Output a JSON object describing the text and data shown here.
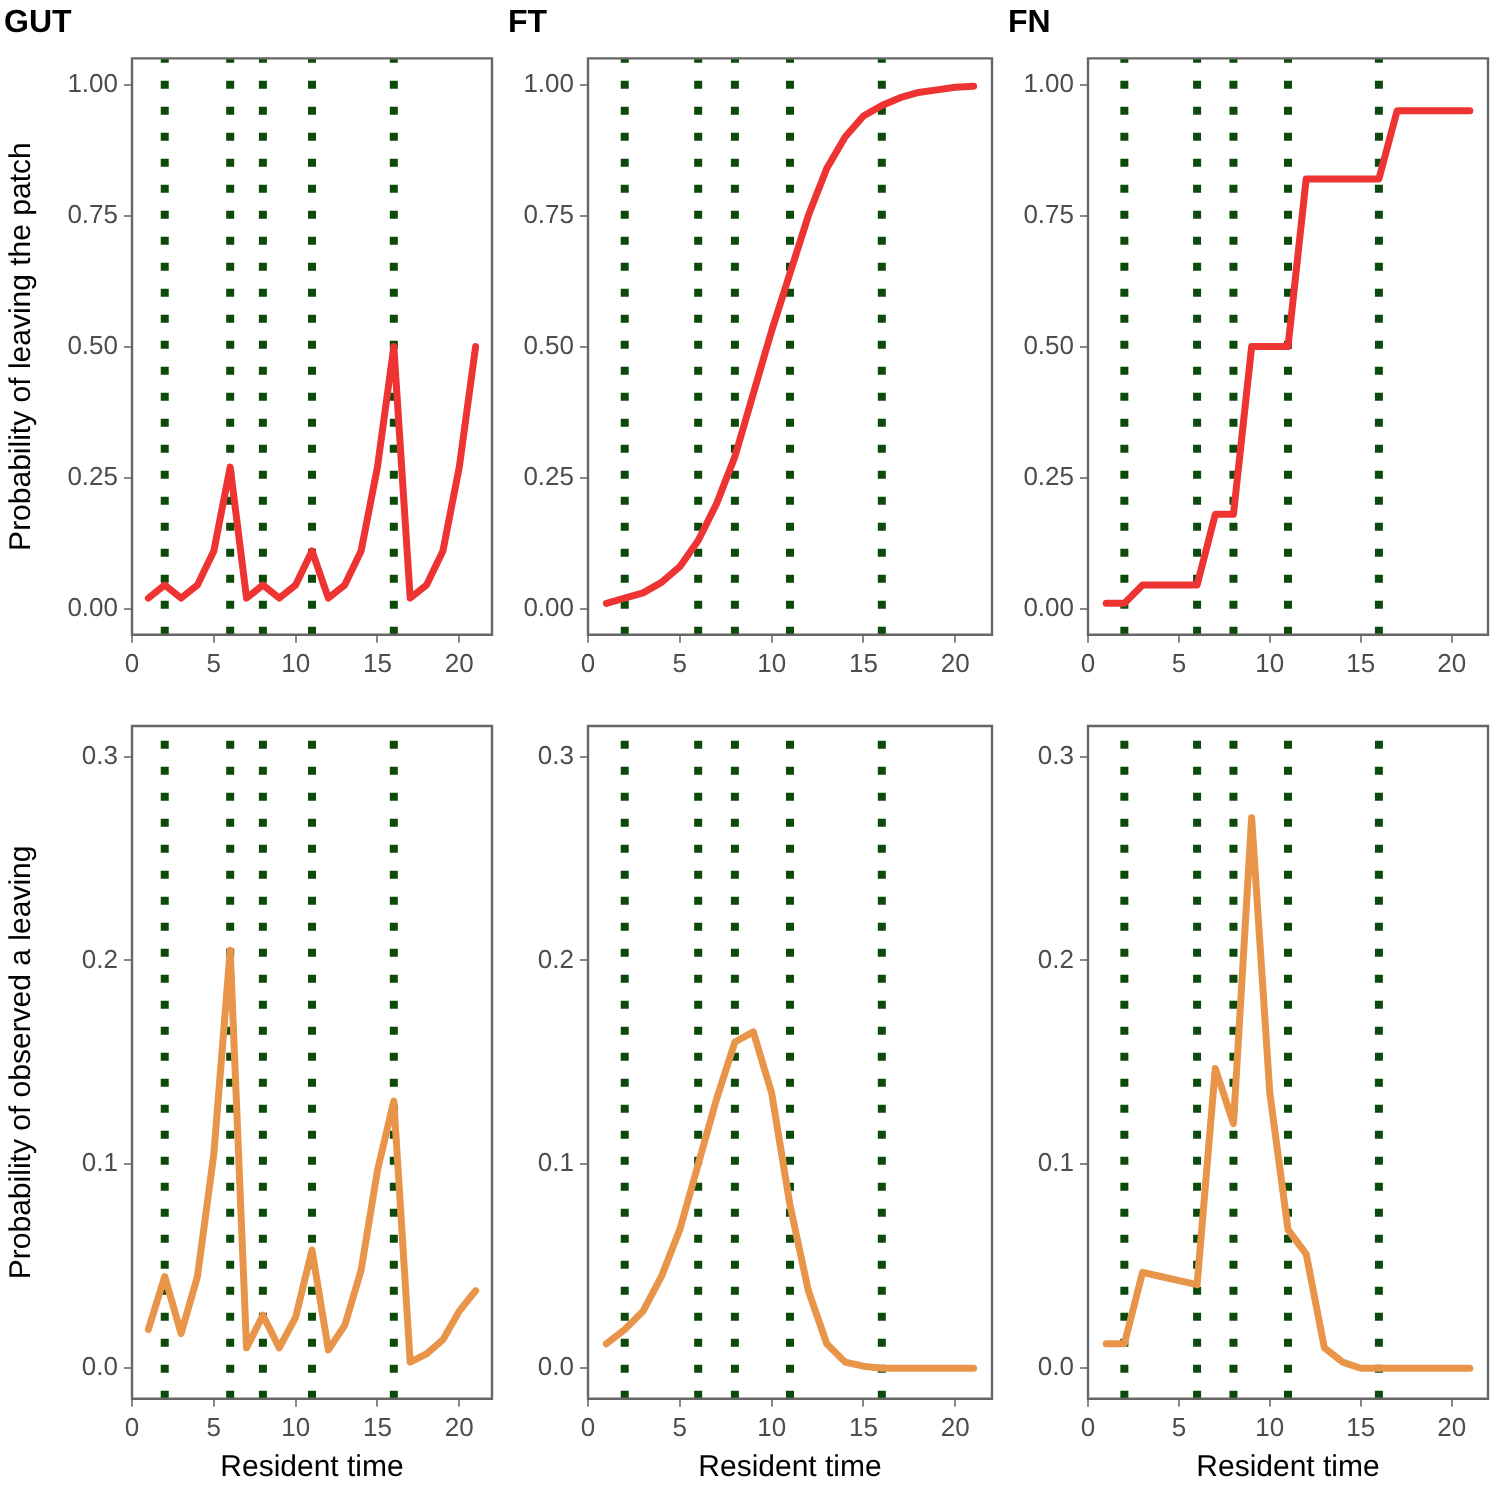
{
  "chart_data": [
    {
      "type": "line",
      "title": "GUT",
      "ylabel": "Probability of leaving the patch",
      "x": [
        1,
        2,
        3,
        4,
        5,
        6,
        7,
        8,
        9,
        10,
        11,
        12,
        13,
        14,
        15,
        16,
        17,
        18,
        19,
        20,
        21
      ],
      "series": [
        {
          "color": "#ee3333",
          "values": [
            0.02,
            0.045,
            0.02,
            0.045,
            0.11,
            0.27,
            0.02,
            0.045,
            0.02,
            0.045,
            0.11,
            0.02,
            0.045,
            0.11,
            0.27,
            0.5,
            0.02,
            0.045,
            0.11,
            0.27,
            0.5
          ]
        }
      ],
      "xlim": [
        0,
        22
      ],
      "xticks": [
        0,
        5,
        10,
        15,
        20
      ],
      "ylim": [
        -0.05,
        1.05
      ],
      "yticks": [
        {
          "value": 0,
          "label": "0.00"
        },
        {
          "value": 0.25,
          "label": "0.25"
        },
        {
          "value": 0.5,
          "label": "0.50"
        },
        {
          "value": 0.75,
          "label": "0.75"
        },
        {
          "value": 1,
          "label": "1.00"
        }
      ],
      "grid": false,
      "legend": false,
      "marker": "none",
      "line_style": "solid",
      "ref_lines": [
        {
          "axis": "x",
          "value": 2,
          "color": "#0b4a0b",
          "line_style": "dotted"
        },
        {
          "axis": "x",
          "value": 6,
          "color": "#0b4a0b",
          "line_style": "dotted"
        },
        {
          "axis": "x",
          "value": 8,
          "color": "#0b4a0b",
          "line_style": "dotted"
        },
        {
          "axis": "x",
          "value": 11,
          "color": "#0b4a0b",
          "line_style": "dotted"
        },
        {
          "axis": "x",
          "value": 16,
          "color": "#0b4a0b",
          "line_style": "dotted"
        }
      ]
    },
    {
      "type": "line",
      "title": "FT",
      "x": [
        1,
        2,
        3,
        4,
        5,
        6,
        7,
        8,
        9,
        10,
        11,
        12,
        13,
        14,
        15,
        16,
        17,
        18,
        19,
        20,
        21
      ],
      "series": [
        {
          "color": "#ee3333",
          "values": [
            0.01,
            0.02,
            0.03,
            0.05,
            0.08,
            0.13,
            0.2,
            0.29,
            0.41,
            0.53,
            0.64,
            0.75,
            0.84,
            0.9,
            0.94,
            0.96,
            0.975,
            0.985,
            0.99,
            0.995,
            0.997
          ]
        }
      ],
      "xlim": [
        0,
        22
      ],
      "xticks": [
        0,
        5,
        10,
        15,
        20
      ],
      "ylim": [
        -0.05,
        1.05
      ],
      "yticks": [
        {
          "value": 0,
          "label": "0.00"
        },
        {
          "value": 0.25,
          "label": "0.25"
        },
        {
          "value": 0.5,
          "label": "0.50"
        },
        {
          "value": 0.75,
          "label": "0.75"
        },
        {
          "value": 1,
          "label": "1.00"
        }
      ],
      "grid": false,
      "legend": false,
      "marker": "none",
      "line_style": "solid",
      "ref_lines": [
        {
          "axis": "x",
          "value": 2,
          "color": "#0b4a0b",
          "line_style": "dotted"
        },
        {
          "axis": "x",
          "value": 6,
          "color": "#0b4a0b",
          "line_style": "dotted"
        },
        {
          "axis": "x",
          "value": 8,
          "color": "#0b4a0b",
          "line_style": "dotted"
        },
        {
          "axis": "x",
          "value": 11,
          "color": "#0b4a0b",
          "line_style": "dotted"
        },
        {
          "axis": "x",
          "value": 16,
          "color": "#0b4a0b",
          "line_style": "dotted"
        }
      ]
    },
    {
      "type": "line",
      "title": "FN",
      "x": [
        1,
        2,
        3,
        4,
        5,
        6,
        7,
        8,
        9,
        10,
        11,
        12,
        13,
        14,
        15,
        16,
        17,
        18,
        19,
        20,
        21
      ],
      "series": [
        {
          "color": "#ee3333",
          "values": [
            0.01,
            0.01,
            0.045,
            0.045,
            0.045,
            0.045,
            0.18,
            0.18,
            0.5,
            0.5,
            0.5,
            0.82,
            0.82,
            0.82,
            0.82,
            0.82,
            0.95,
            0.95,
            0.95,
            0.95,
            0.95
          ]
        }
      ],
      "xlim": [
        0,
        22
      ],
      "xticks": [
        0,
        5,
        10,
        15,
        20
      ],
      "ylim": [
        -0.05,
        1.05
      ],
      "yticks": [
        {
          "value": 0,
          "label": "0.00"
        },
        {
          "value": 0.25,
          "label": "0.25"
        },
        {
          "value": 0.5,
          "label": "0.50"
        },
        {
          "value": 0.75,
          "label": "0.75"
        },
        {
          "value": 1,
          "label": "1.00"
        }
      ],
      "grid": false,
      "legend": false,
      "marker": "none",
      "line_style": "solid",
      "ref_lines": [
        {
          "axis": "x",
          "value": 2,
          "color": "#0b4a0b",
          "line_style": "dotted"
        },
        {
          "axis": "x",
          "value": 6,
          "color": "#0b4a0b",
          "line_style": "dotted"
        },
        {
          "axis": "x",
          "value": 8,
          "color": "#0b4a0b",
          "line_style": "dotted"
        },
        {
          "axis": "x",
          "value": 11,
          "color": "#0b4a0b",
          "line_style": "dotted"
        },
        {
          "axis": "x",
          "value": 16,
          "color": "#0b4a0b",
          "line_style": "dotted"
        }
      ]
    },
    {
      "type": "line",
      "ylabel": "Probability of observed a leaving",
      "xlabel": "Resident time",
      "x": [
        1,
        2,
        3,
        4,
        5,
        6,
        7,
        8,
        9,
        10,
        11,
        12,
        13,
        14,
        15,
        16,
        17,
        18,
        19,
        20,
        21
      ],
      "series": [
        {
          "color": "#e8954a",
          "values": [
            0.019,
            0.045,
            0.017,
            0.045,
            0.105,
            0.205,
            0.01,
            0.026,
            0.01,
            0.025,
            0.058,
            0.009,
            0.021,
            0.048,
            0.097,
            0.131,
            0.003,
            0.007,
            0.014,
            0.028,
            0.038
          ]
        }
      ],
      "xlim": [
        0,
        22
      ],
      "xticks": [
        0,
        5,
        10,
        15,
        20
      ],
      "ylim": [
        -0.015,
        0.315
      ],
      "yticks": [
        {
          "value": 0,
          "label": "0.0"
        },
        {
          "value": 0.1,
          "label": "0.1"
        },
        {
          "value": 0.2,
          "label": "0.2"
        },
        {
          "value": 0.3,
          "label": "0.3"
        }
      ],
      "grid": false,
      "legend": false,
      "marker": "none",
      "line_style": "solid",
      "ref_lines": [
        {
          "axis": "x",
          "value": 2,
          "color": "#0b4a0b",
          "line_style": "dotted"
        },
        {
          "axis": "x",
          "value": 6,
          "color": "#0b4a0b",
          "line_style": "dotted"
        },
        {
          "axis": "x",
          "value": 8,
          "color": "#0b4a0b",
          "line_style": "dotted"
        },
        {
          "axis": "x",
          "value": 11,
          "color": "#0b4a0b",
          "line_style": "dotted"
        },
        {
          "axis": "x",
          "value": 16,
          "color": "#0b4a0b",
          "line_style": "dotted"
        }
      ]
    },
    {
      "type": "line",
      "xlabel": "Resident time",
      "x": [
        1,
        2,
        3,
        4,
        5,
        6,
        7,
        8,
        9,
        10,
        11,
        12,
        13,
        14,
        15,
        16,
        17,
        18,
        19,
        20,
        21
      ],
      "series": [
        {
          "color": "#e8954a",
          "values": [
            0.012,
            0.019,
            0.028,
            0.045,
            0.068,
            0.1,
            0.132,
            0.16,
            0.165,
            0.135,
            0.08,
            0.038,
            0.012,
            0.003,
            0.001,
            0,
            0,
            0,
            0,
            0,
            0
          ]
        }
      ],
      "xlim": [
        0,
        22
      ],
      "xticks": [
        0,
        5,
        10,
        15,
        20
      ],
      "ylim": [
        -0.015,
        0.315
      ],
      "yticks": [
        {
          "value": 0,
          "label": "0.0"
        },
        {
          "value": 0.1,
          "label": "0.1"
        },
        {
          "value": 0.2,
          "label": "0.2"
        },
        {
          "value": 0.3,
          "label": "0.3"
        }
      ],
      "grid": false,
      "legend": false,
      "marker": "none",
      "line_style": "solid",
      "ref_lines": [
        {
          "axis": "x",
          "value": 2,
          "color": "#0b4a0b",
          "line_style": "dotted"
        },
        {
          "axis": "x",
          "value": 6,
          "color": "#0b4a0b",
          "line_style": "dotted"
        },
        {
          "axis": "x",
          "value": 8,
          "color": "#0b4a0b",
          "line_style": "dotted"
        },
        {
          "axis": "x",
          "value": 11,
          "color": "#0b4a0b",
          "line_style": "dotted"
        },
        {
          "axis": "x",
          "value": 16,
          "color": "#0b4a0b",
          "line_style": "dotted"
        }
      ]
    },
    {
      "type": "line",
      "xlabel": "Resident time",
      "x": [
        1,
        2,
        3,
        4,
        5,
        6,
        7,
        8,
        9,
        10,
        11,
        12,
        13,
        14,
        15,
        16,
        17,
        18,
        19,
        20,
        21
      ],
      "series": [
        {
          "color": "#e8954a",
          "values": [
            0.012,
            0.012,
            0.047,
            0.045,
            0.043,
            0.041,
            0.147,
            0.12,
            0.27,
            0.135,
            0.068,
            0.056,
            0.01,
            0.003,
            0,
            0,
            0,
            0,
            0,
            0,
            0
          ]
        }
      ],
      "xlim": [
        0,
        22
      ],
      "xticks": [
        0,
        5,
        10,
        15,
        20
      ],
      "ylim": [
        -0.015,
        0.315
      ],
      "yticks": [
        {
          "value": 0,
          "label": "0.0"
        },
        {
          "value": 0.1,
          "label": "0.1"
        },
        {
          "value": 0.2,
          "label": "0.2"
        },
        {
          "value": 0.3,
          "label": "0.3"
        }
      ],
      "grid": false,
      "legend": false,
      "marker": "none",
      "line_style": "solid",
      "ref_lines": [
        {
          "axis": "x",
          "value": 2,
          "color": "#0b4a0b",
          "line_style": "dotted"
        },
        {
          "axis": "x",
          "value": 6,
          "color": "#0b4a0b",
          "line_style": "dotted"
        },
        {
          "axis": "x",
          "value": 8,
          "color": "#0b4a0b",
          "line_style": "dotted"
        },
        {
          "axis": "x",
          "value": 11,
          "color": "#0b4a0b",
          "line_style": "dotted"
        },
        {
          "axis": "x",
          "value": 16,
          "color": "#0b4a0b",
          "line_style": "dotted"
        }
      ]
    }
  ]
}
